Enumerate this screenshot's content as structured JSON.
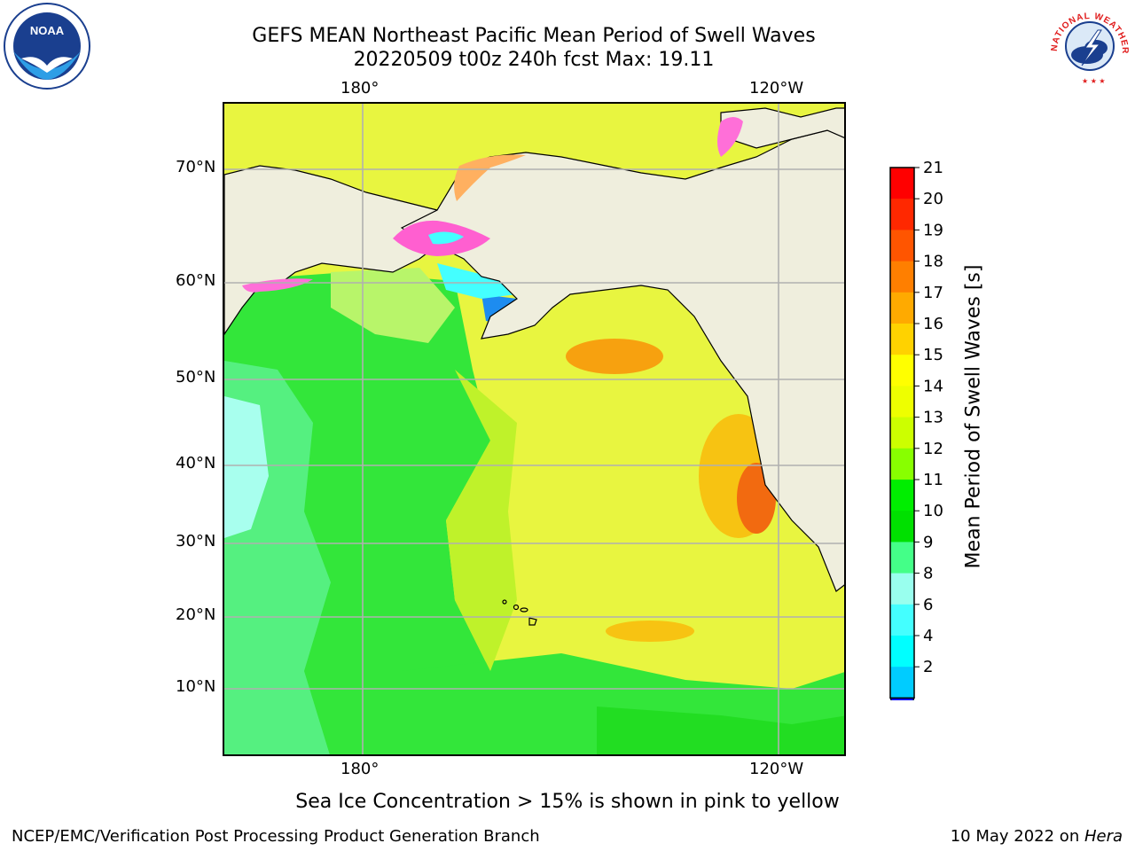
{
  "title_line1": "GEFS MEAN Northeast Pacific Mean Period of Swell Waves",
  "title_line2": "20220509 t00z 240h fcst   Max: 19.11",
  "subtitle_bottom": "Sea Ice Concentration > 15% is shown in pink to yellow",
  "footer_left": "NCEP/EMC/Verification Post Processing Product Generation Branch",
  "footer_right_date": "10 May 2022 on ",
  "footer_right_machine": "Hera",
  "logos": {
    "noaa_text": "NOAA",
    "nws_text": "NATIONAL WEATHER SERVICE"
  },
  "map": {
    "lon_labels": [
      "180°",
      "120°W"
    ],
    "lat_labels": [
      "70°N",
      "60°N",
      "50°N",
      "40°N",
      "30°N",
      "20°N",
      "10°N"
    ],
    "ocean_color": "#e8f540",
    "land_color": "#efeedd"
  },
  "colorbar": {
    "label": "Mean Period of Swell Waves [s]",
    "ticks": [
      "21",
      "20",
      "19",
      "18",
      "17",
      "16",
      "15",
      "14",
      "13",
      "12",
      "11",
      "10",
      "9",
      "8",
      "6",
      "4",
      "2"
    ],
    "colors_top_to_bottom": [
      "#ff0000",
      "#ff2800",
      "#ff5500",
      "#ff7f00",
      "#ffaa00",
      "#ffd200",
      "#ffff00",
      "#eeff00",
      "#ccff00",
      "#88ff00",
      "#00ee00",
      "#00e000",
      "#44ff88",
      "#99ffee",
      "#44ffff",
      "#00ffff",
      "#00ccff",
      "#0077ff"
    ],
    "extend_min_color": "#0000ff"
  }
}
